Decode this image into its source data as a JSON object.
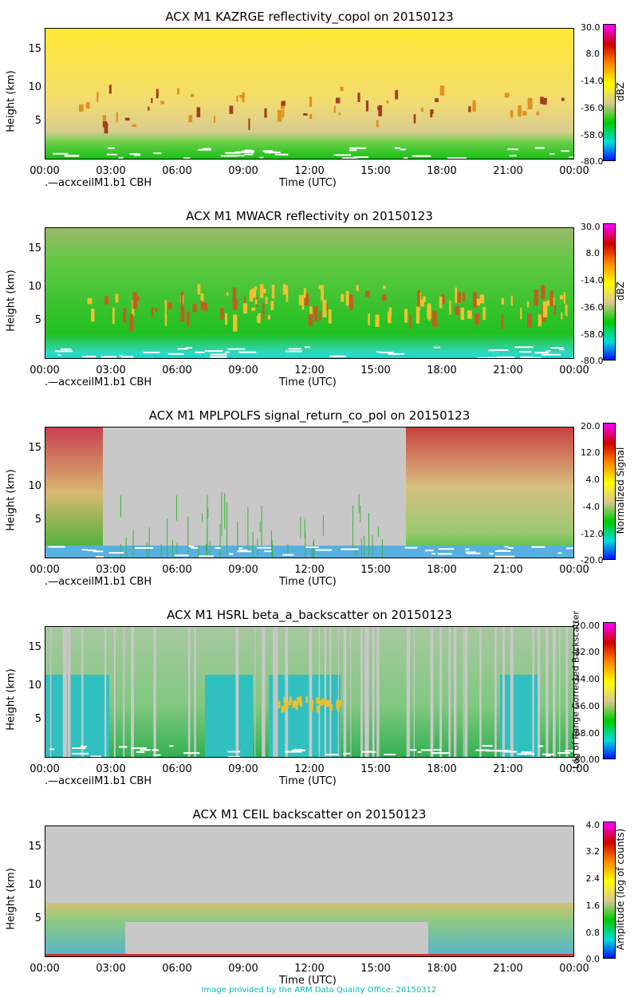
{
  "x_ticks": [
    "00:00",
    "03:00",
    "06:00",
    "09:00",
    "12:00",
    "15:00",
    "18:00",
    "21:00",
    "00:00"
  ],
  "y_ticks": [
    "15",
    "10",
    "5"
  ],
  "y_label": "Height (km)",
  "x_label": "Time (UTC)",
  "legend": ".—acxceilM1.b1 CBH",
  "footer": "Image provided by the ARM Data Quality Office: 20150312",
  "panels": [
    {
      "title": "ACX M1 KAZRGE reflectivity_copol on 20150123",
      "cb_ticks": [
        "30.0",
        "8.0",
        "-14.0",
        "-36.0",
        "-58.0",
        "-80.0"
      ],
      "cb_label": "dBZ"
    },
    {
      "title": "ACX M1 MWACR reflectivity on 20150123",
      "cb_ticks": [
        "30.0",
        "8.0",
        "-14.0",
        "-36.0",
        "-58.0",
        "-80.0"
      ],
      "cb_label": "dBZ"
    },
    {
      "title": "ACX M1 MPLPOLFS signal_return_co_pol on 20150123",
      "cb_ticks": [
        "20.0",
        "12.0",
        "4.0",
        "-4.0",
        "-12.0",
        "-20.0"
      ],
      "cb_label": "Normalized Signal"
    },
    {
      "title": "ACX M1 HSRL beta_a_backscatter on 20150123",
      "cb_ticks": [
        "-20.00",
        "-32.00",
        "-44.00",
        "-56.00",
        "-68.00",
        "-80.00"
      ],
      "cb_label": "Log of Range Corrected Backscatter"
    },
    {
      "title": "ACX M1 CEIL backscatter on 20150123",
      "cb_ticks": [
        "4.0",
        "3.2",
        "2.4",
        "1.6",
        "0.8",
        "0.0"
      ],
      "cb_label": "Amplitude (log of counts)"
    }
  ],
  "chart_data": [
    {
      "type": "heatmap",
      "title": "ACX M1 KAZRGE reflectivity_copol on 20150123",
      "xlabel": "Time (UTC)",
      "ylabel": "Height (km)",
      "xlim": [
        "00:00",
        "24:00"
      ],
      "ylim": [
        0,
        18
      ],
      "colorbar": {
        "label": "dBZ",
        "range": [
          -80,
          30
        ]
      },
      "legend": [
        ".—acxceilM1.b1 CBH"
      ]
    },
    {
      "type": "heatmap",
      "title": "ACX M1 MWACR reflectivity on 20150123",
      "xlabel": "Time (UTC)",
      "ylabel": "Height (km)",
      "xlim": [
        "00:00",
        "24:00"
      ],
      "ylim": [
        0,
        18
      ],
      "colorbar": {
        "label": "dBZ",
        "range": [
          -80,
          30
        ]
      },
      "legend": [
        ".—acxceilM1.b1 CBH"
      ]
    },
    {
      "type": "heatmap",
      "title": "ACX M1 MPLPOLFS signal_return_co_pol on 20150123",
      "xlabel": "Time (UTC)",
      "ylabel": "Height (km)",
      "xlim": [
        "00:00",
        "24:00"
      ],
      "ylim": [
        0,
        18
      ],
      "colorbar": {
        "label": "Normalized Signal",
        "range": [
          -20,
          20
        ]
      },
      "legend": [
        ".—acxceilM1.b1 CBH"
      ]
    },
    {
      "type": "heatmap",
      "title": "ACX M1 HSRL beta_a_backscatter on 20150123",
      "xlabel": "Time (UTC)",
      "ylabel": "Height (km)",
      "xlim": [
        "00:00",
        "24:00"
      ],
      "ylim": [
        0,
        18
      ],
      "colorbar": {
        "label": "Log of Range Corrected Backscatter",
        "range": [
          -80,
          -20
        ]
      },
      "legend": [
        ".—acxceilM1.b1 CBH"
      ]
    },
    {
      "type": "heatmap",
      "title": "ACX M1 CEIL backscatter on 20150123",
      "xlabel": "Time (UTC)",
      "ylabel": "Height (km)",
      "xlim": [
        "00:00",
        "24:00"
      ],
      "ylim": [
        0,
        18
      ],
      "colorbar": {
        "label": "Amplitude (log of counts)",
        "range": [
          0.0,
          4.0
        ]
      }
    }
  ],
  "colors": {
    "colormap": [
      "#ff00ff",
      "#cc0000",
      "#ff8800",
      "#ffff00",
      "#d8c890",
      "#00cc00",
      "#00dddd",
      "#0000ff"
    ],
    "missing_gray": "#c8c8c8",
    "cbh_marker": "#ffffff",
    "footer": "#00bcbc"
  }
}
